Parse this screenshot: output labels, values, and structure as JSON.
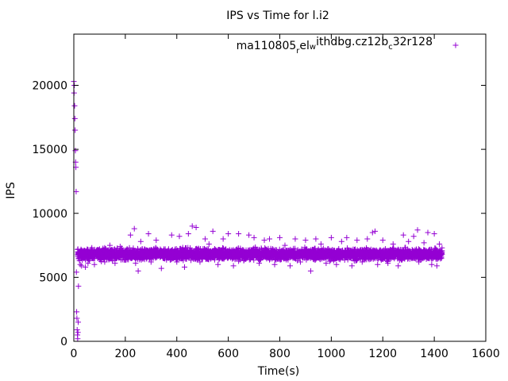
{
  "chart_data": {
    "type": "scatter",
    "title": "IPS vs Time for l.i2",
    "xlabel": "Time(s)",
    "ylabel": "IPS",
    "xlim": [
      0,
      1600
    ],
    "ylim": [
      0,
      24000
    ],
    "xticks": [
      0,
      200,
      400,
      600,
      800,
      1000,
      1200,
      1400,
      1600
    ],
    "yticks": [
      0,
      5000,
      10000,
      15000,
      20000
    ],
    "grid": false,
    "legend_position": "top-right",
    "marker": "plus",
    "series": [
      {
        "name": "ma110805_rel_withdbg.cz12b_c32r128",
        "legend": {
          "parts": [
            "ma110805",
            "r",
            "el",
            "w",
            "ithdbg.cz12b",
            "c",
            "32r128"
          ]
        },
        "color": "#9400d3",
        "points": [
          [
            0,
            20300
          ],
          [
            1,
            19400
          ],
          [
            2,
            20000
          ],
          [
            3,
            18400
          ],
          [
            4,
            17400
          ],
          [
            5,
            16500
          ],
          [
            6,
            14900
          ],
          [
            7,
            14000
          ],
          [
            8,
            13600
          ],
          [
            9,
            11700
          ],
          [
            10,
            5400
          ],
          [
            11,
            2300
          ],
          [
            12,
            1800
          ],
          [
            13,
            900
          ],
          [
            14,
            500
          ],
          [
            15,
            200
          ],
          [
            16,
            700
          ],
          [
            17,
            1500
          ],
          [
            18,
            4300
          ],
          [
            20,
            6800
          ],
          [
            22,
            6300
          ],
          [
            25,
            6000
          ],
          [
            30,
            5900
          ],
          [
            35,
            6900
          ],
          [
            40,
            6500
          ],
          [
            45,
            5800
          ],
          [
            50,
            7000
          ],
          [
            55,
            6100
          ],
          [
            60,
            6300
          ],
          [
            70,
            7300
          ],
          [
            80,
            6000
          ],
          [
            90,
            6700
          ],
          [
            100,
            7200
          ],
          [
            120,
            6200
          ],
          [
            140,
            7500
          ],
          [
            160,
            6100
          ],
          [
            180,
            7400
          ],
          [
            200,
            6600
          ],
          [
            220,
            8300
          ],
          [
            235,
            8800
          ],
          [
            240,
            6100
          ],
          [
            250,
            5500
          ],
          [
            260,
            7800
          ],
          [
            275,
            6400
          ],
          [
            290,
            8400
          ],
          [
            300,
            6200
          ],
          [
            320,
            7900
          ],
          [
            340,
            5700
          ],
          [
            350,
            7200
          ],
          [
            380,
            8300
          ],
          [
            400,
            6200
          ],
          [
            410,
            8200
          ],
          [
            430,
            5800
          ],
          [
            445,
            8400
          ],
          [
            460,
            9000
          ],
          [
            475,
            8900
          ],
          [
            490,
            6200
          ],
          [
            510,
            8000
          ],
          [
            525,
            7600
          ],
          [
            540,
            8600
          ],
          [
            560,
            6000
          ],
          [
            580,
            8000
          ],
          [
            600,
            8400
          ],
          [
            620,
            5900
          ],
          [
            640,
            8400
          ],
          [
            660,
            6300
          ],
          [
            680,
            8300
          ],
          [
            700,
            8100
          ],
          [
            720,
            6100
          ],
          [
            740,
            7900
          ],
          [
            760,
            8000
          ],
          [
            780,
            6000
          ],
          [
            800,
            8100
          ],
          [
            820,
            7500
          ],
          [
            840,
            5900
          ],
          [
            860,
            8000
          ],
          [
            880,
            6200
          ],
          [
            900,
            7900
          ],
          [
            920,
            5500
          ],
          [
            940,
            8000
          ],
          [
            960,
            7600
          ],
          [
            980,
            6100
          ],
          [
            1000,
            8100
          ],
          [
            1020,
            6000
          ],
          [
            1040,
            7800
          ],
          [
            1060,
            8100
          ],
          [
            1080,
            5900
          ],
          [
            1100,
            7900
          ],
          [
            1120,
            6200
          ],
          [
            1140,
            8000
          ],
          [
            1160,
            8500
          ],
          [
            1170,
            8600
          ],
          [
            1180,
            6000
          ],
          [
            1200,
            7900
          ],
          [
            1220,
            6100
          ],
          [
            1240,
            7600
          ],
          [
            1260,
            5900
          ],
          [
            1280,
            8300
          ],
          [
            1300,
            7800
          ],
          [
            1320,
            8200
          ],
          [
            1335,
            8700
          ],
          [
            1340,
            6200
          ],
          [
            1360,
            7700
          ],
          [
            1375,
            8500
          ],
          [
            1390,
            6000
          ],
          [
            1400,
            8400
          ],
          [
            1410,
            5900
          ],
          [
            1420,
            7600
          ],
          [
            1430,
            7300
          ]
        ],
        "band": {
          "x_start": 15,
          "x_end": 1430,
          "y_center": 6800,
          "y_spread": 600
        }
      }
    ]
  }
}
